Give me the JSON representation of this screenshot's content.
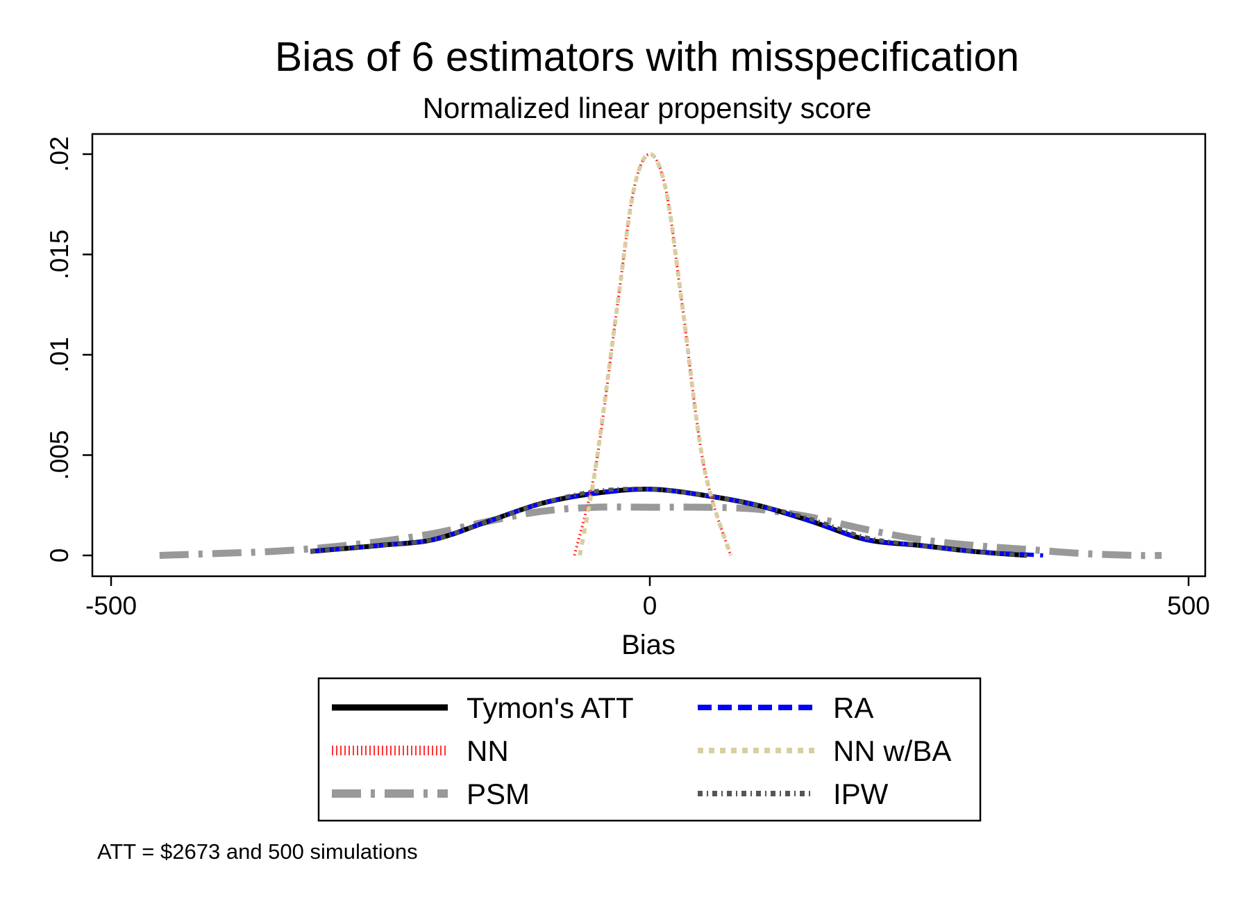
{
  "chart_data": {
    "type": "line",
    "title": "Bias of 6 estimators with misspecification",
    "subtitle": "Normalized linear propensity score",
    "xlabel": "Bias",
    "ylabel": "",
    "xlim": [
      -500,
      500
    ],
    "ylim": [
      0,
      0.02
    ],
    "x_ticks": [
      {
        "value": -500,
        "label": "-500"
      },
      {
        "value": 0,
        "label": "0"
      },
      {
        "value": 500,
        "label": "500"
      }
    ],
    "y_ticks": [
      {
        "value": 0,
        "label": "0"
      },
      {
        "value": 0.005,
        "label": ".005"
      },
      {
        "value": 0.01,
        "label": ".01"
      },
      {
        "value": 0.015,
        "label": ".015"
      },
      {
        "value": 0.02,
        "label": ".02"
      }
    ],
    "grid": false,
    "legend_position": "bottom",
    "note": "ATT = $2673 and 500 simulations",
    "series": [
      {
        "name": "Tymon's ATT",
        "color": "#000000",
        "style": "solid",
        "x": [
          -315,
          -250,
          -200,
          -150,
          -100,
          -50,
          0,
          50,
          100,
          150,
          200,
          250,
          300,
          350
        ],
        "y": [
          0.0002,
          0.0005,
          0.0008,
          0.0017,
          0.0026,
          0.0031,
          0.0033,
          0.003,
          0.0025,
          0.0017,
          0.0008,
          0.0005,
          0.0002,
          0.0
        ]
      },
      {
        "name": "RA",
        "color": "#0000ff",
        "style": "dash",
        "x": [
          -315,
          -250,
          -200,
          -150,
          -100,
          -50,
          0,
          50,
          100,
          150,
          200,
          250,
          300,
          365
        ],
        "y": [
          0.0002,
          0.0005,
          0.0008,
          0.0017,
          0.0026,
          0.0031,
          0.0033,
          0.003,
          0.0025,
          0.0017,
          0.0008,
          0.0005,
          0.0002,
          0.0
        ]
      },
      {
        "name": "NN",
        "color": "#ff3333",
        "style": "dot",
        "x": [
          -70,
          -50,
          -30,
          -15,
          0,
          15,
          30,
          50,
          75
        ],
        "y": [
          0.0,
          0.0045,
          0.0125,
          0.0182,
          0.02,
          0.0182,
          0.0125,
          0.0045,
          0.0
        ]
      },
      {
        "name": "NN w/BA",
        "color": "#d8cfa0",
        "style": "dash-dot-small",
        "x": [
          -65,
          -50,
          -30,
          -15,
          0,
          15,
          30,
          50,
          75
        ],
        "y": [
          0.0,
          0.0045,
          0.0125,
          0.0182,
          0.02,
          0.0182,
          0.0125,
          0.0045,
          0.0
        ]
      },
      {
        "name": "PSM",
        "color": "#999999",
        "style": "long-dash-dot",
        "x": [
          -455,
          -400,
          -350,
          -300,
          -250,
          -200,
          -150,
          -100,
          -50,
          0,
          50,
          100,
          150,
          200,
          250,
          300,
          350,
          400,
          450,
          475
        ],
        "y": [
          0.0,
          0.0001,
          0.0002,
          0.0004,
          0.0007,
          0.0011,
          0.0017,
          0.0022,
          0.0024,
          0.0024,
          0.0024,
          0.0023,
          0.0019,
          0.0013,
          0.0008,
          0.0005,
          0.0003,
          0.0001,
          0.0,
          0.0
        ]
      },
      {
        "name": "IPW",
        "color": "#555555",
        "style": "dash-dot-dot",
        "x": [
          -315,
          -250,
          -200,
          -150,
          -100,
          -50,
          0,
          50,
          100,
          150,
          200,
          250,
          300,
          350
        ],
        "y": [
          0.0002,
          0.0005,
          0.0008,
          0.0017,
          0.0026,
          0.0032,
          0.0033,
          0.003,
          0.0025,
          0.0018,
          0.0009,
          0.0005,
          0.0002,
          0.0
        ]
      }
    ]
  }
}
